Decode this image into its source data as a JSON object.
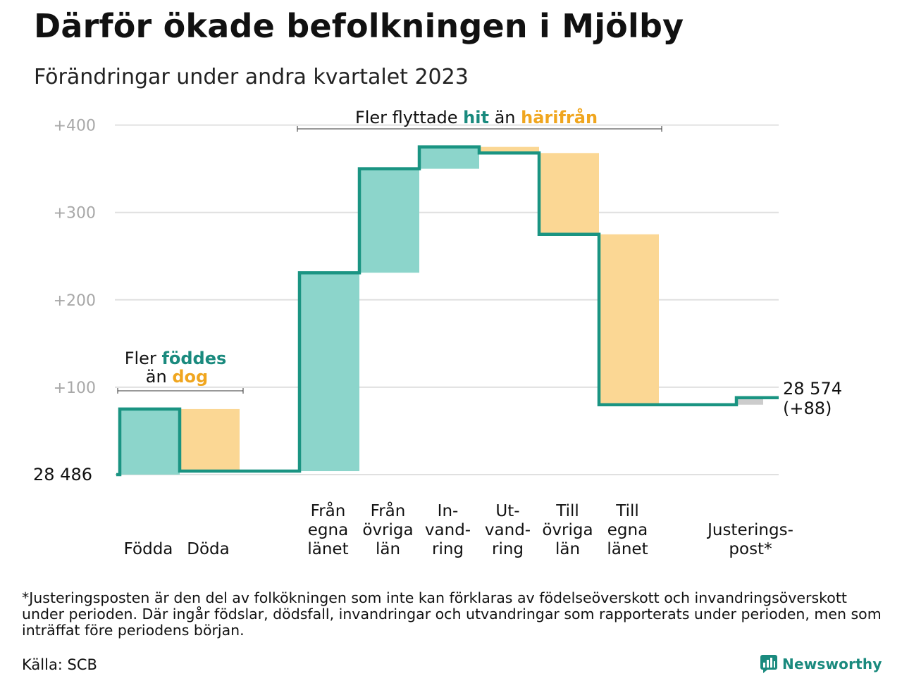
{
  "title": "Därför ökade befolkningen i Mjölby",
  "subtitle": "Förändringar under andra kvartalet 2023",
  "chart_data": {
    "type": "waterfall",
    "base_value": 28486,
    "base_label": "28   486",
    "end_value": 28574,
    "end_label_lines": [
      "28 574",
      "(+88)"
    ],
    "ylim": [
      0,
      400
    ],
    "yticks": [
      {
        "value": 100,
        "label": "+100"
      },
      {
        "value": 200,
        "label": "+200"
      },
      {
        "value": 300,
        "label": "+300"
      },
      {
        "value": 400,
        "label": "+400"
      }
    ],
    "grid": true,
    "steps": [
      {
        "label_lines": [
          "Födda"
        ],
        "change": 75,
        "direction": "increase"
      },
      {
        "label_lines": [
          "Döda"
        ],
        "change": -71,
        "direction": "decrease"
      },
      {
        "label_lines": [
          "Från",
          "egna",
          "länet"
        ],
        "change": 227,
        "direction": "increase"
      },
      {
        "label_lines": [
          "Från",
          "övriga",
          "län"
        ],
        "change": 119,
        "direction": "increase"
      },
      {
        "label_lines": [
          "In-",
          "vand-",
          "ring"
        ],
        "change": 25,
        "direction": "increase"
      },
      {
        "label_lines": [
          "Ut-",
          "vand-",
          "ring"
        ],
        "change": -7,
        "direction": "decrease"
      },
      {
        "label_lines": [
          "Till",
          "övriga",
          "län"
        ],
        "change": -93,
        "direction": "decrease"
      },
      {
        "label_lines": [
          "Till",
          "egna",
          "länet"
        ],
        "change": -195,
        "direction": "decrease"
      },
      {
        "label_lines": [
          "Justerings-",
          "post*"
        ],
        "change": 8,
        "direction": "adjustment"
      }
    ],
    "annotations": [
      {
        "id": "births",
        "line1": "Fler ",
        "line1_hl": "föddes",
        "line2": "än ",
        "line2_hl": "dog"
      },
      {
        "id": "migration",
        "text": "Fler flyttade ",
        "hl1": "hit",
        "mid": " än ",
        "hl2": "härifrån"
      }
    ],
    "colors": {
      "increase": "#8cd5cb",
      "decrease": "#fbd794",
      "adjustment": "#cccccc",
      "line": "#1a9482",
      "increase_text": "#1a8a7e",
      "decrease_text": "#f0a61f",
      "grid": "#e0e0e0",
      "tick_text": "#a8a8a8"
    }
  },
  "footnote": "*Justeringsposten är den del av folkökningen som inte kan förklaras av födelseöverskott och invandringsöverskott under perioden. Där ingår födslar, dödsfall, invandringar och utvandringar som rapporterats under perioden, men som inträffat före periodens början.",
  "source": "Källa: SCB",
  "brand": {
    "name": "Newsworthy",
    "icon": "newsworthy-logo-icon"
  }
}
